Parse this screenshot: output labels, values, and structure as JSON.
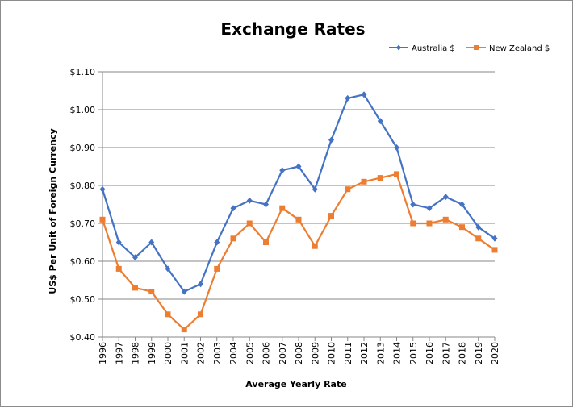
{
  "chart_data": {
    "type": "line",
    "title": "Exchange Rates",
    "xlabel": "Average Yearly Rate",
    "ylabel": "US$ Per Unit of Foreign Currency",
    "categories": [
      "1996",
      "1997",
      "1998",
      "1999",
      "2000",
      "2001",
      "2002",
      "2003",
      "2004",
      "2005",
      "2006",
      "2007",
      "2008",
      "2009",
      "2010",
      "2011",
      "2012",
      "2013",
      "2014",
      "2015",
      "2016",
      "2017",
      "2018",
      "2019",
      "2020"
    ],
    "ylim": [
      0.4,
      1.1
    ],
    "yticks": [
      0.4,
      0.5,
      0.6,
      0.7,
      0.8,
      0.9,
      1.0,
      1.1
    ],
    "ytick_labels": [
      "$0.40",
      "$0.50",
      "$0.60",
      "$0.70",
      "$0.80",
      "$0.90",
      "$1.00",
      "$1.10"
    ],
    "grid": "horizontal",
    "legend": "top-right",
    "series": [
      {
        "name": "Australia $",
        "color": "#4472C4",
        "marker": "diamond",
        "values": [
          0.79,
          0.65,
          0.61,
          0.65,
          0.58,
          0.52,
          0.54,
          0.65,
          0.74,
          0.76,
          0.75,
          0.84,
          0.85,
          0.79,
          0.92,
          1.03,
          1.04,
          0.97,
          0.9,
          0.75,
          0.74,
          0.77,
          0.75,
          0.69,
          0.66
        ]
      },
      {
        "name": "New Zealand $",
        "color": "#ED7D31",
        "marker": "square",
        "values": [
          0.71,
          0.58,
          0.53,
          0.52,
          0.46,
          0.42,
          0.46,
          0.58,
          0.66,
          0.7,
          0.65,
          0.74,
          0.71,
          0.64,
          0.72,
          0.79,
          0.81,
          0.82,
          0.83,
          0.7,
          0.7,
          0.71,
          0.69,
          0.66,
          0.63
        ]
      }
    ]
  }
}
